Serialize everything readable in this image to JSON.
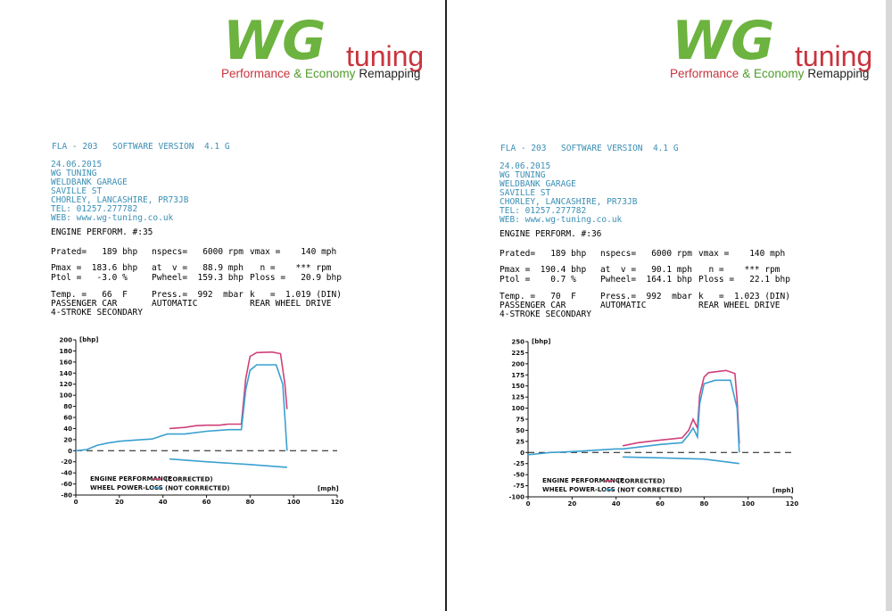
{
  "sheets": [
    {
      "logo": {
        "brand": "WG",
        "word": "tuning",
        "tagline": [
          "Performance",
          "& Economy",
          "Remapping"
        ]
      },
      "header": {
        "device": "FLA - 203",
        "software": "SOFTWARE VERSION  4.1 G"
      },
      "address": [
        "24.06.2015",
        "WG TUNING",
        "WELDBANK GARAGE",
        "SAVILLE ST",
        "CHORLEY, LANCASHIRE, PR73JB",
        "TEL: 01257.277782",
        "WEB: www.wg-tuning.co.uk"
      ],
      "test": "ENGINE PERFORM. #:35",
      "params": [
        [
          "Prated=   189 bhp",
          "nspecs=   6000 rpm",
          "vmax =    140 mph"
        ],
        [
          "Pmax =  183.6 bhp",
          "at  v =   88.9 mph",
          "  n =    *** rpm"
        ],
        [
          "Ptol =   -3.0 %",
          "Pwheel=  159.3 bhp",
          "Ploss =   20.9 bhp"
        ],
        [
          "Temp. =   66  F",
          "Press.=  992  mbar",
          "k   =  1.019 (DIN)"
        ],
        [
          "PASSENGER CAR",
          "AUTOMATIC",
          "REAR WHEEL DRIVE"
        ],
        [
          "4-STROKE SECONDARY"
        ]
      ]
    },
    {
      "logo": {
        "brand": "WG",
        "word": "tuning",
        "tagline": [
          "Performance",
          "& Economy",
          "Remapping"
        ]
      },
      "header": {
        "device": "FLA - 203",
        "software": "SOFTWARE VERSION  4.1 G"
      },
      "address": [
        "24.06.2015",
        "WG TUNING",
        "WELDBANK GARAGE",
        "SAVILLE ST",
        "CHORLEY, LANCASHIRE, PR73JB",
        "TEL: 01257.277782",
        "WEB: www.wg-tuning.co.uk"
      ],
      "test": "ENGINE PERFORM. #:36",
      "params": [
        [
          "Prated=   189 bhp",
          "nspecs=   6000 rpm",
          "vmax =    140 mph"
        ],
        [
          "Pmax =  190.4 bhp",
          "at  v =   90.1 mph",
          "  n =    *** rpm"
        ],
        [
          "Ptol =    0.7 %",
          "Pwheel=  164.1 bhp",
          "Ploss =   22.1 bhp"
        ],
        [
          "Temp. =   70  F",
          "Press.=  992  mbar",
          "k   =  1.023 (DIN)"
        ],
        [
          "PASSENGER CAR",
          "AUTOMATIC",
          "REAR WHEEL DRIVE"
        ],
        [
          "4-STROKE SECONDARY"
        ]
      ]
    }
  ],
  "chart_data": [
    {
      "type": "line",
      "y_label": "[bhp]",
      "x_label": "[mph]",
      "legend_labels": [
        "ENGINE PERFORMANCE",
        "WHEEL POWER-LOSS"
      ],
      "xlim": [
        0,
        120
      ],
      "xticks": [
        0,
        20,
        40,
        60,
        80,
        100,
        120
      ],
      "ylim": [
        -80,
        200
      ],
      "yticks": [
        200,
        180,
        160,
        140,
        120,
        100,
        80,
        60,
        40,
        20,
        0,
        -20,
        -40,
        -60,
        -80
      ],
      "series": [
        {
          "name": "(CORRECTED)",
          "color": "#d0407a",
          "x": [
            43,
            50,
            55,
            60,
            66,
            70,
            76,
            78,
            80,
            83,
            90,
            94,
            96,
            97
          ],
          "values": [
            40,
            42,
            45,
            46,
            46,
            48,
            48,
            130,
            170,
            177,
            178,
            175,
            120,
            75
          ]
        },
        {
          "name": "(NOT CORRECTED)",
          "color": "#3aa0d0",
          "x": [
            0,
            5,
            10,
            15,
            20,
            30,
            35,
            38,
            42,
            50,
            60,
            70,
            76,
            78,
            80,
            83,
            92,
            95,
            97
          ],
          "values": [
            0,
            2,
            10,
            14,
            17,
            20,
            21,
            25,
            30,
            30,
            35,
            38,
            38,
            110,
            145,
            155,
            155,
            120,
            0
          ]
        },
        {
          "color": "#3aa0d0",
          "x": [
            43,
            60,
            80,
            97
          ],
          "values": [
            -15,
            -20,
            -25,
            -30
          ]
        }
      ]
    },
    {
      "type": "line",
      "y_label": "[bhp]",
      "x_label": "[mph]",
      "legend_labels": [
        "ENGINE PERFORMANCE",
        "WHEEL POWER-LOSS"
      ],
      "xlim": [
        0,
        120
      ],
      "xticks": [
        0,
        20,
        40,
        60,
        80,
        100,
        120
      ],
      "ylim": [
        -100,
        250
      ],
      "yticks": [
        250,
        225,
        200,
        175,
        150,
        125,
        100,
        75,
        50,
        25,
        0,
        -25,
        -50,
        -75,
        -100
      ],
      "series": [
        {
          "name": "(CORRECTED)",
          "color": "#d0407a",
          "x": [
            43,
            50,
            60,
            70,
            73,
            75,
            77,
            78,
            80,
            82,
            90,
            94,
            95,
            96
          ],
          "values": [
            15,
            22,
            28,
            33,
            50,
            75,
            55,
            130,
            170,
            180,
            185,
            178,
            120,
            20
          ]
        },
        {
          "name": "(NOT CORRECTED)",
          "color": "#3aa0d0",
          "x": [
            0,
            10,
            20,
            30,
            40,
            43,
            50,
            60,
            70,
            73,
            75,
            77,
            78,
            80,
            85,
            92,
            95,
            96
          ],
          "values": [
            -5,
            0,
            2,
            5,
            8,
            8,
            12,
            18,
            22,
            40,
            55,
            35,
            110,
            155,
            163,
            163,
            100,
            0
          ]
        },
        {
          "color": "#3aa0d0",
          "x": [
            43,
            60,
            80,
            96
          ],
          "values": [
            -10,
            -12,
            -15,
            -25
          ]
        }
      ]
    }
  ]
}
